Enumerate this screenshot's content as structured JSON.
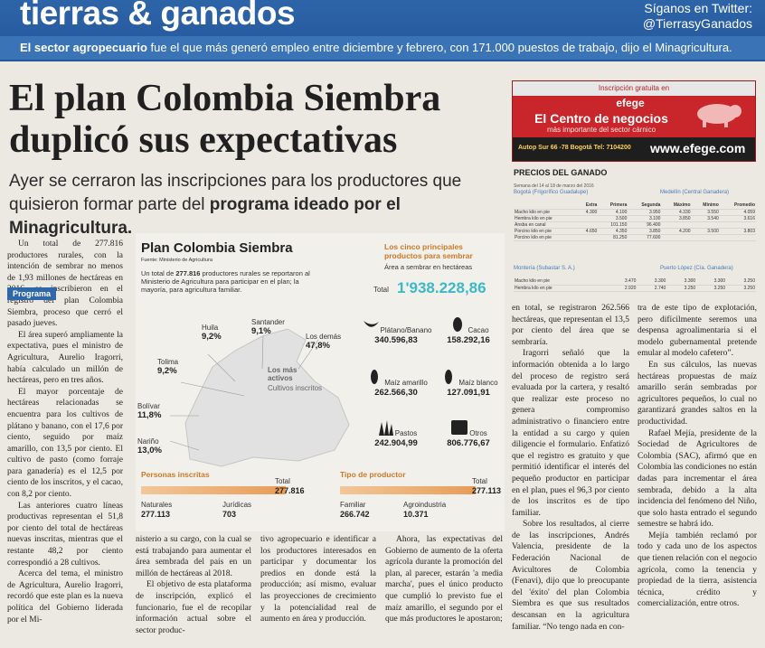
{
  "header": {
    "section": "tierras & ganados",
    "follow_line1": "Síganos en Twitter:",
    "follow_line2": "@TierrasyGanados",
    "subhead_bold": "El sector agropecuario",
    "subhead_rest": " fue el que más generó empleo entre diciembre y febrero, con 171.000 puestos de trabajo, dijo el Minagricultura."
  },
  "article": {
    "headline": "El plan Colombia Siembra duplicó sus expectativas",
    "deck_1": "Ayer se cerraron las inscripciones para los productores que quisieron formar parte del ",
    "deck_bold": "programa ideado por el Minagricultura.",
    "tag": "Programa",
    "col1": [
      "Un total de 277.816 productores rurales, con la intención de sembrar no menos de 1,93 millones de hectáreas en 2016, se inscribieron en el registro del plan Colombia Siembra, proceso que cerró el pasado jueves.",
      "El área superó ampliamente la expectativa, pues el ministro de Agricultura, Aurelio Iragorri, había calculado un millón de hectáreas, pero en tres años.",
      "El mayor porcentaje de hectáreas relacionadas se encuentra para los cultivos de plátano y banano, con el 17,6 por ciento, seguido por maíz amarillo, con 13,5 por ciento. El cultivo de pasto (como forraje para ganadería) es el 12,5 por ciento de los inscritos, y el cacao, con 8,2 por ciento.",
      "Las anteriores cuatro líneas productivas representan el 51,8 por ciento del total de hectáreas nuevas inscritas, mientras que el restante 48,2 por ciento correspondió a 28 cultivos.",
      "Acerca del tema, el ministro de Agricultura, Aurelio Iragorri, recordó que este plan es la nueva política del Gobierno liderada por el Mi-"
    ],
    "col2": "nisterio a su cargo, con la cual se está trabajando para aumentar el área sembrada del país en un millón de hectáreas al 2018.",
    "col2b": "El objetivo de esta plataforma de inscripción, explicó el funcionario, fue el de recopilar información actual sobre el sector produc-",
    "col3": "tivo agropecuario e identificar a los productores interesados en participar y documentar los predios en donde está la producción; así mismo, evaluar las proyecciones de crecimiento y la potencialidad real de aumento en área y producción.",
    "col4": "Ahora, las expectativas del Gobierno de aumento de la oferta agrícola durante la promoción del plan, al parecer, estarán 'a media marcha', pues el único producto que cumplió lo previsto fue el maíz amarillo, el segundo por el que más productores le apostaron;",
    "col5": [
      "en total, se registraron 262.566 hectáreas, que representan el 13,5 por ciento del área que se sembraría.",
      "Iragorri señaló que la información obtenida a lo largo del proceso de registro será evaluada por la cartera, y resaltó que realizar este proceso no genera compromiso administrativo o financiero entre la entidad a su cargo y quien diligencie el formulario. Enfatizó que el registro es gratuito y que permitió identificar el interés del pequeño productor en participar en el plan, pues el 96,3 por ciento de los inscritos es de tipo familiar.",
      "Sobre los resultados, al cierre de las inscripciones, Andrés Valencia, presidente de la Federación Nacional de Avicultores de Colombia (Fenavi), dijo que lo preocupante del 'éxito' del plan Colombia Siembra es que sus resultados descansan en la agricultura familiar. “No tengo nada en con-"
    ],
    "col6": [
      "tra de este tipo de explotación, pero difícilmente seremos una despensa agroalimentaria si el modelo gubernamental pretende emular al modelo cafetero”.",
      "En sus cálculos, las nuevas hectáreas propuestas de maíz amarillo serán sembradas por agricultores pequeños, lo cual no garantizará grandes saltos en la productividad.",
      "Rafael Mejía, presidente de la Sociedad de Agricultores de Colombia (SAC), afirmó que en Colombia las condiciones no están dadas para incrementar el área sembrada, debido a la alta incidencia del fenómeno del Niño, que solo hasta entrado el segundo semestre se habrá ido.",
      "Mejía también reclamó por todo y cada uno de los aspectos que tienen relación con el negocio agrícola, como la tenencia y propiedad de la tierra, asistencia técnica, crédito y comercialización, entre otros."
    ]
  },
  "ad": {
    "top": "Inscripción gratuita en",
    "brand": "efege",
    "title": "El Centro de negocios",
    "subtitle": "más importante del sector cárnico",
    "address": "Autop Sur 66 -78 Bogotá Tel: 7104200",
    "web": "www.efege.com"
  },
  "prices": {
    "title": "PRECIOS DEL GANADO",
    "date": "Semana del 14 al 18 de marzo del 2016",
    "market1": "Bogotá (Frigorífico Guadalupe)",
    "market2": "Medellín (Central Ganadera)",
    "market3": "Montería (Subastar S. A.)",
    "market4": "Puerto López (Cía. Ganadera)",
    "headers": [
      "",
      "Extra",
      "Primera",
      "Segunda",
      "Máximo",
      "Mínimo",
      "Promedio"
    ],
    "rows1": [
      [
        "Macho kilo en pie",
        "4.300",
        "4.100",
        "3.950",
        "4.330",
        "3.550",
        "4.059"
      ],
      [
        "Hembra kilo en pie",
        "",
        "3.500",
        "3.100",
        "3.850",
        "3.540",
        "3.616"
      ],
      [
        "Ansba en canal",
        "",
        "101.150",
        "96.400",
        "",
        "",
        ""
      ],
      [
        "Porcino kilo en pie",
        "4.650",
        "4.350",
        "3.850",
        "4.200",
        "3.500",
        "3.803"
      ],
      [
        "Porcino kilo en pie",
        "",
        "81.250",
        "77.600",
        "",
        "",
        ""
      ]
    ],
    "rows2": [
      [
        "Macho kilo en pie",
        "",
        "3.470",
        "3.300",
        "3.300",
        "3.300",
        "3.250"
      ],
      [
        "Hembra kilo en pie",
        "",
        "2.920",
        "2.740",
        "3.250",
        "3.250",
        "3.250"
      ]
    ]
  },
  "infographic": {
    "title": "Plan Colombia Siembra",
    "source": "Fuente: Ministerio de Agricultura",
    "desc_pre": "Un total de ",
    "desc_bold": "277.816",
    "desc_post": " productores rurales se reportaron al Ministerio de Agricultura para participar en el plan; la mayoría, para agricultura familiar.",
    "active_label": "Los más activos",
    "active_sub": "Cultivos inscritos",
    "departments": [
      {
        "name": "Huila",
        "pct": "9,2%"
      },
      {
        "name": "Santander",
        "pct": "9,1%"
      },
      {
        "name": "Los demás",
        "pct": "47,8%"
      },
      {
        "name": "Tolima",
        "pct": "9,2%"
      },
      {
        "name": "Bolívar",
        "pct": "11,8%"
      },
      {
        "name": "Nariño",
        "pct": "13,0%"
      }
    ],
    "top5_title": "Los cinco principales productos para sembrar",
    "top5_sub": "Área a sembrar en hectáreas",
    "total_label": "Total",
    "total_value": "1'938.228,86",
    "crops": [
      {
        "name": "Plátano/Banano",
        "value": "340.596,83",
        "icon": "banana-icon"
      },
      {
        "name": "Cacao",
        "value": "158.292,16",
        "icon": "cacao-icon"
      },
      {
        "name": "Maíz amarillo",
        "value": "262.566,30",
        "icon": "corn-icon"
      },
      {
        "name": "Maíz blanco",
        "value": "127.091,91",
        "icon": "corn-icon"
      },
      {
        "name": "Pastos",
        "value": "242.904,99",
        "icon": "grass-icon"
      },
      {
        "name": "Otros",
        "value": "806.776,67",
        "icon": "produce-icon"
      }
    ],
    "persons_title": "Personas inscritas",
    "persons_total_label": "Total",
    "persons_total": "277.816",
    "persons": [
      {
        "name": "Naturales",
        "value": "277.113"
      },
      {
        "name": "Jurídicas",
        "value": "703"
      }
    ],
    "ptype_title": "Tipo de productor",
    "ptype_total_label": "Total",
    "ptype_total": "277.113",
    "ptypes": [
      {
        "name": "Familiar",
        "value": "266.742"
      },
      {
        "name": "Agroindustria",
        "value": "10.371"
      }
    ],
    "colors": {
      "accent": "#cc7a28",
      "total": "#3bb8c9",
      "map": "#e1e1e1"
    }
  }
}
